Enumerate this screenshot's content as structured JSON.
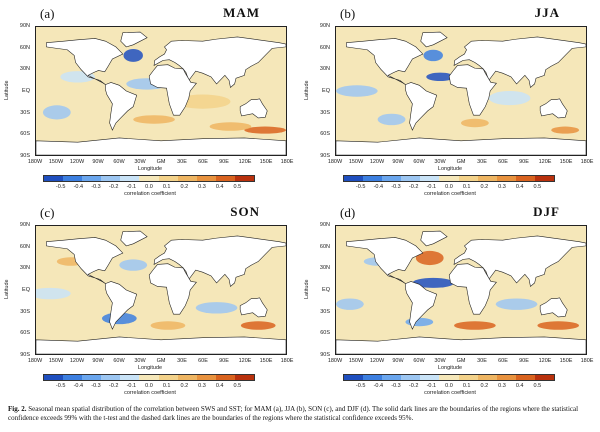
{
  "panels": [
    {
      "id": "a",
      "label": "(a)",
      "season": "MAM"
    },
    {
      "id": "b",
      "label": "(b)",
      "season": "JJA"
    },
    {
      "id": "c",
      "label": "(c)",
      "season": "SON"
    },
    {
      "id": "d",
      "label": "(d)",
      "season": "DJF"
    }
  ],
  "axes": {
    "ylabel": "Latitude",
    "xlabel": "Longitude",
    "yticks": [
      "90N",
      "60N",
      "30N",
      "EQ",
      "30S",
      "60S",
      "90S"
    ],
    "xticks": [
      "180W",
      "150W",
      "120W",
      "90W",
      "60W",
      "30W",
      "GM",
      "30E",
      "60E",
      "90E",
      "120E",
      "150E",
      "180E"
    ]
  },
  "colorbar": {
    "label": "correlation coefficient",
    "ticks": [
      "-0.5",
      "-0.4",
      "-0.3",
      "-0.2",
      "-0.1",
      "0.0",
      "0.1",
      "0.2",
      "0.3",
      "0.4",
      "0.5"
    ],
    "colors": [
      "#1f4fbf",
      "#3c7fe0",
      "#6aa6ee",
      "#9cc6f2",
      "#c9e3f7",
      "#f5e7b9",
      "#f3d28a",
      "#eeb562",
      "#e8923e",
      "#d9631f",
      "#b9310d"
    ]
  },
  "caption": {
    "prefix": "Fig. 2.",
    "text": "Seasonal mean spatial distribution of the correlation between SWS and SST; for MAM (a), JJA (b), SON (c), and DJF (d). The solid dark lines are the boundaries of the regions where the statistical confidence exceeds 99% with the t-test and the dashed dark lines are the boundaries of the regions where the statistical confidence exceeds 95%."
  }
}
